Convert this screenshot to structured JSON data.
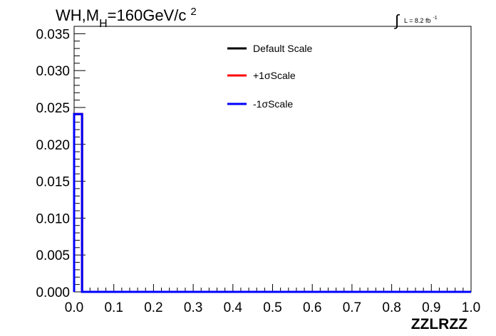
{
  "chart_data": {
    "type": "line",
    "title": {
      "base": "WH,M",
      "subscript": "H",
      "value": "=160GeV/c",
      "superscript": "2"
    },
    "luminosity": {
      "symbol": "∫",
      "text": "L = 8.2 fb",
      "superscript": "-1"
    },
    "xlabel": "ZZLRZZ",
    "ylabel": "",
    "xlim": [
      0.0,
      1.0
    ],
    "ylim": [
      0.0,
      0.036
    ],
    "x_ticks": [
      "0.0",
      "0.1",
      "0.2",
      "0.3",
      "0.4",
      "0.5",
      "0.6",
      "0.7",
      "0.8",
      "0.9",
      "1.0"
    ],
    "y_ticks": [
      "0.000",
      "0.005",
      "0.010",
      "0.015",
      "0.020",
      "0.025",
      "0.030",
      "0.035"
    ],
    "bin_width": 0.02,
    "grid": false,
    "legend_placement": "top-center",
    "series": [
      {
        "name": "Default Scale",
        "color": "#000000",
        "bins": [
          [
            0.0,
            0.0241
          ],
          [
            0.02,
            0.0
          ]
        ]
      },
      {
        "name": "+1σScale",
        "color": "#ff0000",
        "bins": [
          [
            0.0,
            0.0241
          ],
          [
            0.02,
            0.0
          ]
        ]
      },
      {
        "name": "-1σScale",
        "color": "#0000ff",
        "bins": [
          [
            0.0,
            0.0241
          ],
          [
            0.02,
            0.0
          ]
        ]
      }
    ]
  }
}
